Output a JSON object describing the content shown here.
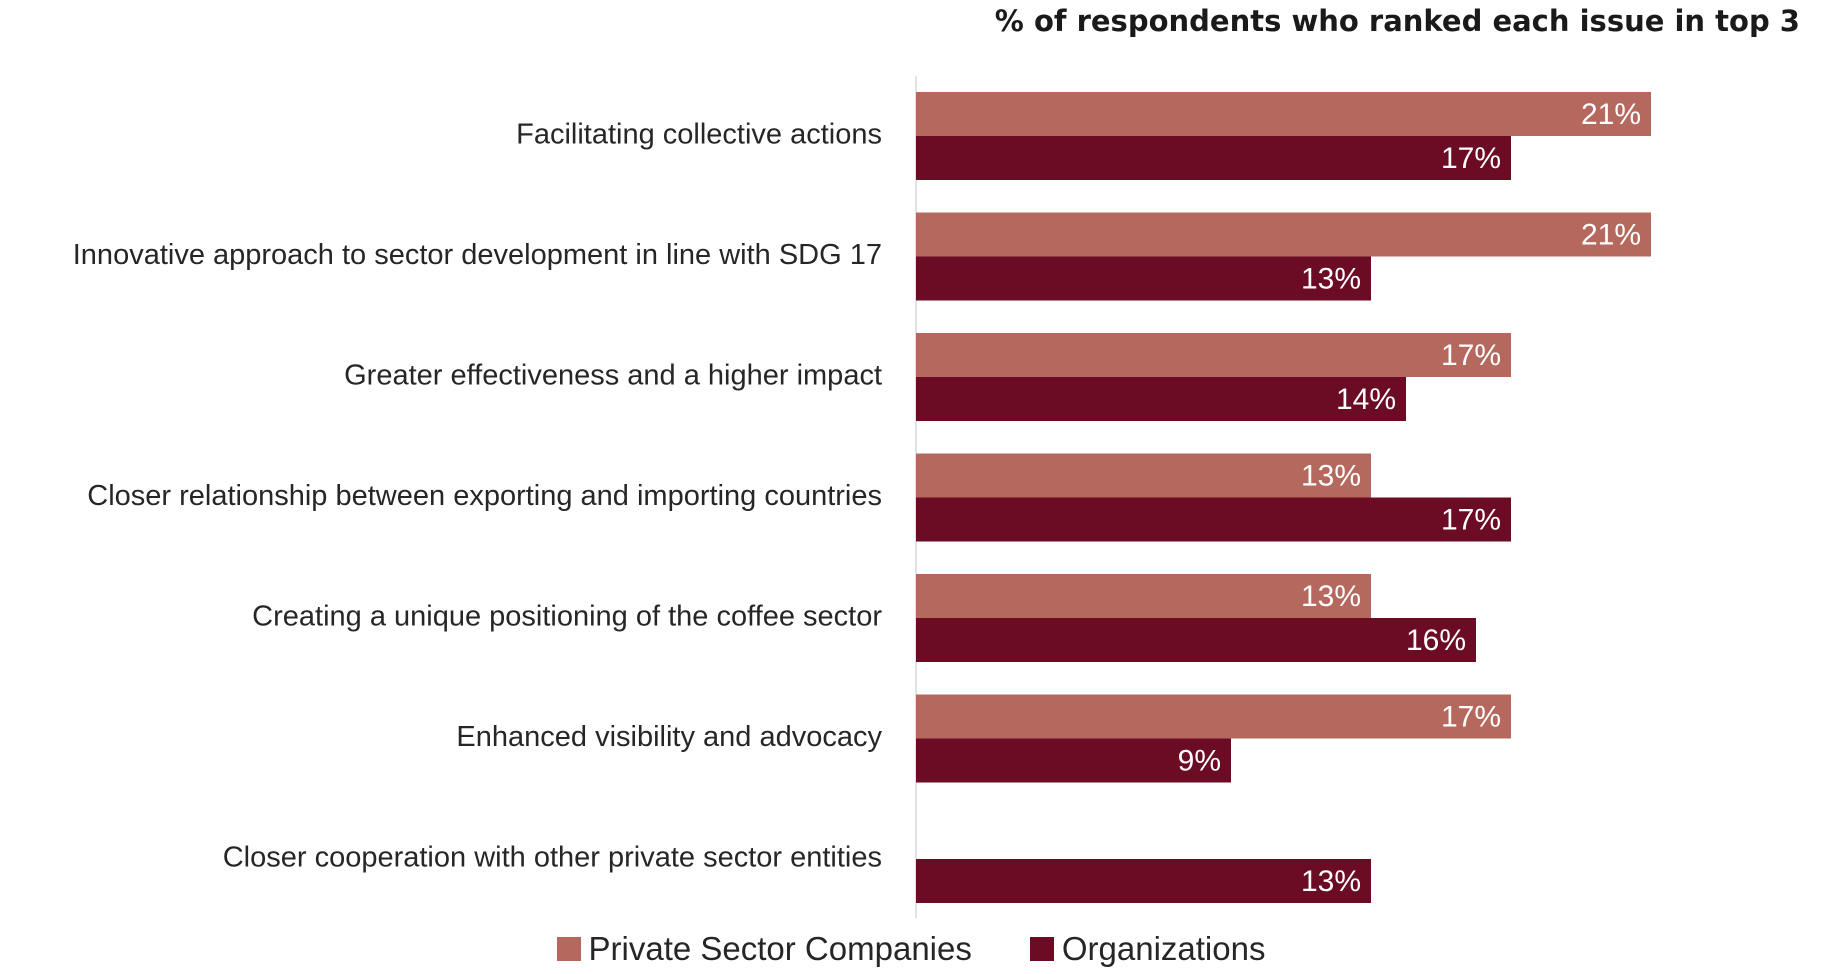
{
  "chart_data": {
    "type": "bar",
    "orientation": "horizontal",
    "title": "% of respondents who ranked each issue in top 3",
    "categories": [
      "Facilitating collective actions",
      "Innovative approach to sector development in line with SDG 17",
      "Greater effectiveness and a higher impact",
      "Closer relationship between exporting and importing countries",
      "Creating a unique positioning of the coffee sector",
      "Enhanced visibility and advocacy",
      "Closer cooperation with other private sector entities"
    ],
    "series": [
      {
        "name": "Private Sector Companies",
        "color": "#b5685e",
        "values": [
          21,
          21,
          17,
          13,
          13,
          17,
          null
        ]
      },
      {
        "name": "Organizations",
        "color": "#6b0b24",
        "values": [
          17,
          13,
          14,
          17,
          16,
          9,
          13
        ]
      }
    ],
    "value_suffix": "%",
    "legend_position": "bottom",
    "grid": false
  }
}
